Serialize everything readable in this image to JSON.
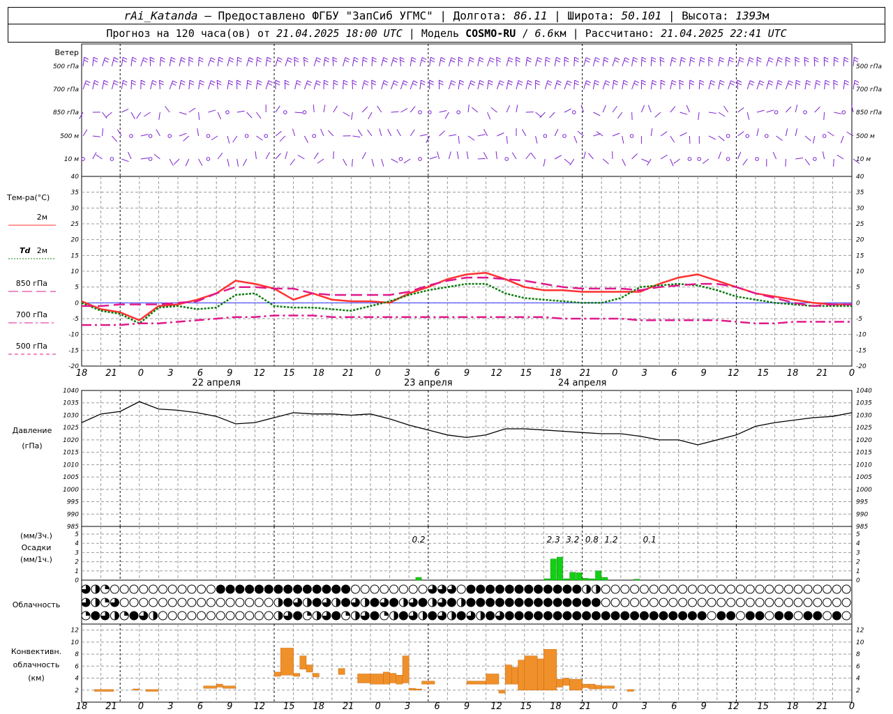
{
  "header": {
    "line1": {
      "station": "rAi_Katanda",
      "provider": "— Предоставлено ФГБУ \"ЗапСиб УГМС\"",
      "lon_label": "Долгота:",
      "lon_value": "86.11",
      "lat_label": "Широта:",
      "lat_value": "50.101",
      "alt_label": "Высота:",
      "alt_value": "1393",
      "alt_unit": "м"
    },
    "line2": {
      "forecast_label": "Прогноз на 120 часа(ов) от",
      "forecast_time": "21.04.2025 18:00 UTC",
      "model_label": "Модель",
      "model_name": "COSMO-RU",
      "model_res": "6.6",
      "model_res_unit": "км",
      "calc_label": "Рассчитано:",
      "calc_time": "21.04.2025 22:41 UTC"
    }
  },
  "x_axis": {
    "tick_labels": [
      "18",
      "21",
      "0",
      "3",
      "6",
      "9",
      "12",
      "15",
      "18",
      "21",
      "0",
      "3",
      "6",
      "9",
      "12",
      "15",
      "18",
      "21",
      "0",
      "3",
      "6",
      "9",
      "12",
      "15",
      "18",
      "21",
      "0"
    ],
    "day_labels": [
      "22 апреля",
      "23 апреля",
      "24 апреля"
    ]
  },
  "wind_panel": {
    "title": "Ветер",
    "levels": [
      "500 гПа",
      "700 гПа",
      "850 гПа",
      "500 м",
      "10 м"
    ],
    "colors": {
      "barb": "#7a1fd0"
    }
  },
  "cloud_panel": {
    "title": "Облачность"
  },
  "conv_panel": {
    "title_lines": [
      "Конвективн.",
      "облачность",
      "(км)"
    ]
  },
  "precip_panel": {
    "title_lines": [
      "(мм/3ч.)",
      "Осадки",
      "(мм/1ч.)"
    ]
  },
  "pressure_panel": {
    "title_lines": [
      "Давление",
      "(гПа)"
    ]
  },
  "chart_data": [
    {
      "type": "line",
      "name_ru": "Тем-ра(°C)",
      "legend": [
        {
          "label": "2м",
          "italic_prefix": "",
          "color": "#ff3030",
          "style": "solid"
        },
        {
          "label": "2м",
          "italic_prefix": "Td",
          "color": "#0a7a0a",
          "style": "dotted"
        },
        {
          "label": "850 гПа",
          "italic_prefix": "",
          "color": "#e0188c",
          "style": "longdash"
        },
        {
          "label": "700 гПа",
          "italic_prefix": "",
          "color": "#e0188c",
          "style": "dashdot"
        },
        {
          "label": "500 гПа",
          "italic_prefix": "",
          "color": "#e0188c",
          "style": "shortdash"
        }
      ],
      "y_ticks": [
        "40",
        "35",
        "30",
        "25",
        "20",
        "15",
        "10",
        "5",
        "0",
        "-5",
        "-10",
        "-15",
        "-20"
      ],
      "ylim": [
        -20,
        40
      ],
      "x_hours": [
        0,
        3,
        6,
        9,
        12,
        15,
        18,
        21,
        24,
        27,
        30,
        33,
        36,
        39,
        42,
        45,
        48,
        51,
        54,
        57,
        60,
        63,
        66,
        69,
        72,
        75,
        78,
        81,
        84,
        87,
        90,
        93,
        96,
        99,
        102,
        105,
        108,
        111,
        114,
        117,
        120
      ],
      "series": [
        {
          "key": "t2m",
          "values": [
            0.5,
            -2,
            -3,
            -5.5,
            -1,
            -0.5,
            1,
            3,
            7,
            6,
            4.5,
            1,
            3,
            1,
            0.5,
            0.5,
            0,
            3,
            5,
            7.5,
            9,
            9.5,
            7.5,
            5,
            4,
            4,
            3.5,
            3.5,
            3.5,
            3.5,
            6,
            8,
            9,
            7,
            5,
            3,
            2,
            1,
            0,
            -0.5,
            -0.5
          ]
        },
        {
          "key": "td2m",
          "values": [
            0,
            -2.5,
            -3.5,
            -6.5,
            -1.5,
            -1,
            -2,
            -1.5,
            2.5,
            3,
            -1,
            -1.5,
            -1.5,
            -2,
            -2.5,
            -1,
            0.5,
            2.5,
            4,
            5,
            6,
            6,
            3,
            1.5,
            1,
            0.5,
            0,
            0,
            1.5,
            5,
            5.5,
            6,
            5.5,
            4,
            2,
            1,
            0,
            -0.5,
            -1,
            -1,
            -1
          ]
        },
        {
          "key": "t850",
          "values": [
            -1,
            -1,
            -0.5,
            -0.5,
            -0.5,
            0,
            0.5,
            3,
            5,
            5,
            4.5,
            4.5,
            3,
            2.5,
            2.5,
            2.5,
            2.5,
            3.5,
            5.5,
            7,
            8,
            8,
            7.5,
            7,
            6,
            5,
            4.5,
            4.5,
            4.5,
            4,
            5,
            5.5,
            6,
            6,
            5,
            3,
            1.5,
            0,
            -1,
            -0.5,
            -0.5
          ]
        },
        {
          "key": "t700",
          "values": [
            -7,
            -7,
            -7,
            -6.5,
            -6.5,
            -6,
            -5.5,
            -5,
            -4.5,
            -4.5,
            -4,
            -4,
            -4,
            -4.5,
            -4.5,
            -4.5,
            -4.5,
            -4.5,
            -4.5,
            -4.5,
            -4.5,
            -4.5,
            -4.5,
            -4.5,
            -4.5,
            -5,
            -5,
            -5,
            -5,
            -5.5,
            -5.5,
            -5.5,
            -5.5,
            -5.5,
            -6,
            -6.5,
            -6.5,
            -6,
            -6,
            -6,
            -6
          ]
        },
        {
          "key": "t500",
          "values": []
        }
      ]
    },
    {
      "type": "line",
      "name_ru": "Давление",
      "y_ticks": [
        "1040",
        "1035",
        "1030",
        "1025",
        "1020",
        "1015",
        "1010",
        "1005",
        "1000",
        "995",
        "990",
        "985"
      ],
      "ylim": [
        985,
        1040
      ],
      "x_hours": [
        0,
        3,
        6,
        9,
        12,
        15,
        18,
        21,
        24,
        27,
        30,
        33,
        36,
        39,
        42,
        45,
        48,
        51,
        54,
        57,
        60,
        63,
        66,
        69,
        72,
        75,
        78,
        81,
        84,
        87,
        90,
        93,
        96,
        99,
        102,
        105,
        108,
        111,
        114,
        117,
        120
      ],
      "series": [
        {
          "key": "pressure",
          "values": [
            1027,
            1030.5,
            1031.5,
            1035.5,
            1032.5,
            1032,
            1031,
            1029.5,
            1026.5,
            1027,
            1029,
            1031,
            1030.5,
            1030.5,
            1030,
            1030.5,
            1028.5,
            1026,
            1024,
            1022,
            1021,
            1022,
            1024.5,
            1024.5,
            1024,
            1023.5,
            1023,
            1022.5,
            1022.5,
            1021.5,
            1020,
            1020,
            1018,
            1020,
            1022,
            1025.5,
            1027,
            1028,
            1029,
            1029.5,
            1031
          ]
        }
      ]
    },
    {
      "type": "bar",
      "name_ru": "Осадки",
      "y_ticks": [
        "5",
        "4",
        "3",
        "2",
        "1",
        "0"
      ],
      "ylim": [
        0,
        5
      ],
      "color": "#12d012",
      "bars_mm_per_h": [
        {
          "hour": 52,
          "value": 0.3
        },
        {
          "hour": 72,
          "value": 0.15
        },
        {
          "hour": 73,
          "value": 2.3
        },
        {
          "hour": 74,
          "value": 2.5
        },
        {
          "hour": 75,
          "value": 0.15
        },
        {
          "hour": 76,
          "value": 0.85
        },
        {
          "hour": 77,
          "value": 0.8
        },
        {
          "hour": 78,
          "value": 0.2
        },
        {
          "hour": 79,
          "value": 0.15
        },
        {
          "hour": 80,
          "value": 1.0
        },
        {
          "hour": 81,
          "value": 0.3
        },
        {
          "hour": 86,
          "value": 0.1
        }
      ],
      "amount_labels": [
        {
          "hour": 52.5,
          "text": "0.2"
        },
        {
          "hour": 73.5,
          "text": "2.3"
        },
        {
          "hour": 76.5,
          "text": "3.2"
        },
        {
          "hour": 79.5,
          "text": "0.8"
        },
        {
          "hour": 82.5,
          "text": "1.2"
        },
        {
          "hour": 88.5,
          "text": "0.1"
        }
      ]
    },
    {
      "type": "bar",
      "name_ru": "Конвективн. облачность (км)",
      "y_ticks": [
        "12",
        "10",
        "8",
        "6",
        "4",
        "2"
      ],
      "ylim": [
        0,
        13
      ],
      "color": "#f0902a",
      "bars": [
        {
          "start": 2,
          "end": 5,
          "bottom": 1.8,
          "top": 2.1
        },
        {
          "start": 8,
          "end": 9,
          "bottom": 2.0,
          "top": 2.2
        },
        {
          "start": 10,
          "end": 12,
          "bottom": 1.8,
          "top": 2.1
        },
        {
          "start": 19,
          "end": 21,
          "bottom": 2.3,
          "top": 2.7
        },
        {
          "start": 21,
          "end": 22,
          "bottom": 2.5,
          "top": 3.0
        },
        {
          "start": 22,
          "end": 24,
          "bottom": 2.3,
          "top": 2.7
        },
        {
          "start": 30,
          "end": 31,
          "bottom": 4.3,
          "top": 5.0
        },
        {
          "start": 31,
          "end": 33,
          "bottom": 4.5,
          "top": 9.0
        },
        {
          "start": 33,
          "end": 34,
          "bottom": 4.3,
          "top": 4.8
        },
        {
          "start": 34,
          "end": 35,
          "bottom": 5.5,
          "top": 7.7
        },
        {
          "start": 35,
          "end": 36,
          "bottom": 5.0,
          "top": 6.2
        },
        {
          "start": 36,
          "end": 37,
          "bottom": 4.2,
          "top": 4.8
        },
        {
          "start": 40,
          "end": 41,
          "bottom": 4.6,
          "top": 5.6
        },
        {
          "start": 43,
          "end": 45,
          "bottom": 3.2,
          "top": 4.7
        },
        {
          "start": 45,
          "end": 47,
          "bottom": 3.0,
          "top": 4.7
        },
        {
          "start": 47,
          "end": 48,
          "bottom": 3.0,
          "top": 5.0
        },
        {
          "start": 48,
          "end": 49,
          "bottom": 3.2,
          "top": 4.8
        },
        {
          "start": 49,
          "end": 50,
          "bottom": 3.0,
          "top": 4.5
        },
        {
          "start": 50,
          "end": 51,
          "bottom": 3.2,
          "top": 7.7
        },
        {
          "start": 51,
          "end": 52,
          "bottom": 2.0,
          "top": 2.3
        },
        {
          "start": 52,
          "end": 53,
          "bottom": 2.0,
          "top": 2.2
        },
        {
          "start": 53,
          "end": 55,
          "bottom": 3.0,
          "top": 3.5
        },
        {
          "start": 60,
          "end": 63,
          "bottom": 3.0,
          "top": 3.5
        },
        {
          "start": 63,
          "end": 65,
          "bottom": 3.0,
          "top": 4.7
        },
        {
          "start": 65,
          "end": 66,
          "bottom": 1.5,
          "top": 2.0
        },
        {
          "start": 66,
          "end": 67,
          "bottom": 3.0,
          "top": 6.2
        },
        {
          "start": 67,
          "end": 68,
          "bottom": 3.0,
          "top": 5.8
        },
        {
          "start": 68,
          "end": 69,
          "bottom": 2.0,
          "top": 7.0
        },
        {
          "start": 69,
          "end": 71,
          "bottom": 2.0,
          "top": 7.7
        },
        {
          "start": 71,
          "end": 72,
          "bottom": 2.0,
          "top": 7.2
        },
        {
          "start": 72,
          "end": 74,
          "bottom": 2.0,
          "top": 8.8
        },
        {
          "start": 74,
          "end": 75,
          "bottom": 2.5,
          "top": 3.8
        },
        {
          "start": 75,
          "end": 76,
          "bottom": 2.8,
          "top": 4.0
        },
        {
          "start": 76,
          "end": 78,
          "bottom": 2.0,
          "top": 3.8
        },
        {
          "start": 78,
          "end": 79,
          "bottom": 2.4,
          "top": 3.0
        },
        {
          "start": 79,
          "end": 80,
          "bottom": 2.2,
          "top": 3.0
        },
        {
          "start": 80,
          "end": 81,
          "bottom": 2.2,
          "top": 2.8
        },
        {
          "start": 81,
          "end": 83,
          "bottom": 2.3,
          "top": 2.7
        },
        {
          "start": 85,
          "end": 86,
          "bottom": 1.8,
          "top": 2.1
        }
      ]
    }
  ]
}
